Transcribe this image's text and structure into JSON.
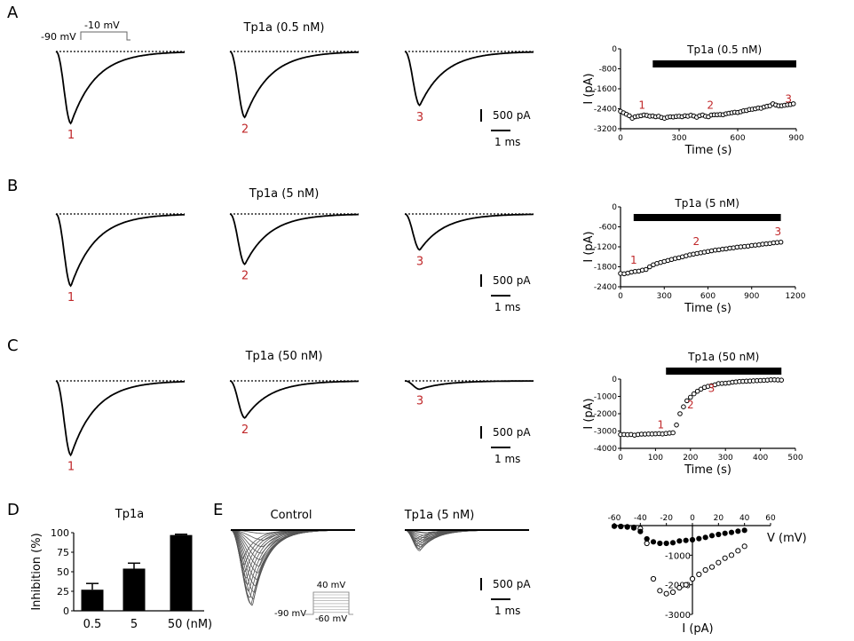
{
  "panels": {
    "A": {
      "letter": "A",
      "title": "Tp1a (0.5 nM)",
      "protocol": {
        "hold": "-90 mV",
        "step": "-10 mV"
      },
      "traces": [
        {
          "label": "1",
          "peak_pA": 3000
        },
        {
          "label": "2",
          "peak_pA": 2750
        },
        {
          "label": "3",
          "peak_pA": 2250
        }
      ],
      "scale": {
        "current": "500 pA",
        "time": "1 ms"
      },
      "timecourse": {
        "type": "scatter",
        "title": "Tp1a (0.5 nM)",
        "xlabel": "Time (s)",
        "ylabel": "I (pA)",
        "xlim": [
          0,
          900
        ],
        "ylim": [
          -3200,
          0
        ],
        "xticks": [
          "0",
          "300",
          "600",
          "900"
        ],
        "yticks": [
          "0",
          "-800",
          "-1600",
          "-2400",
          "-3200"
        ],
        "drug_bar": [
          165,
          900
        ],
        "markers": [
          {
            "label": "1",
            "x": 110,
            "y": -2400
          },
          {
            "label": "2",
            "x": 460,
            "y": -2400
          },
          {
            "label": "3",
            "x": 860,
            "y": -2150
          }
        ],
        "points": [
          [
            0,
            -2500
          ],
          [
            15,
            -2560
          ],
          [
            30,
            -2620
          ],
          [
            45,
            -2680
          ],
          [
            60,
            -2780
          ],
          [
            75,
            -2720
          ],
          [
            90,
            -2700
          ],
          [
            105,
            -2680
          ],
          [
            120,
            -2650
          ],
          [
            135,
            -2670
          ],
          [
            150,
            -2700
          ],
          [
            165,
            -2690
          ],
          [
            180,
            -2720
          ],
          [
            195,
            -2700
          ],
          [
            210,
            -2750
          ],
          [
            225,
            -2780
          ],
          [
            240,
            -2740
          ],
          [
            255,
            -2720
          ],
          [
            270,
            -2730
          ],
          [
            285,
            -2710
          ],
          [
            300,
            -2700
          ],
          [
            315,
            -2720
          ],
          [
            330,
            -2680
          ],
          [
            345,
            -2700
          ],
          [
            360,
            -2660
          ],
          [
            375,
            -2690
          ],
          [
            390,
            -2740
          ],
          [
            405,
            -2680
          ],
          [
            420,
            -2650
          ],
          [
            435,
            -2700
          ],
          [
            450,
            -2720
          ],
          [
            465,
            -2650
          ],
          [
            480,
            -2640
          ],
          [
            495,
            -2640
          ],
          [
            510,
            -2630
          ],
          [
            525,
            -2640
          ],
          [
            540,
            -2600
          ],
          [
            555,
            -2580
          ],
          [
            570,
            -2560
          ],
          [
            585,
            -2540
          ],
          [
            600,
            -2550
          ],
          [
            615,
            -2520
          ],
          [
            630,
            -2480
          ],
          [
            645,
            -2470
          ],
          [
            660,
            -2430
          ],
          [
            675,
            -2420
          ],
          [
            690,
            -2400
          ],
          [
            705,
            -2370
          ],
          [
            720,
            -2380
          ],
          [
            735,
            -2330
          ],
          [
            750,
            -2300
          ],
          [
            765,
            -2280
          ],
          [
            780,
            -2200
          ],
          [
            795,
            -2250
          ],
          [
            810,
            -2280
          ],
          [
            825,
            -2280
          ],
          [
            840,
            -2260
          ],
          [
            855,
            -2240
          ],
          [
            870,
            -2230
          ],
          [
            885,
            -2200
          ]
        ]
      }
    },
    "B": {
      "letter": "B",
      "title": "Tp1a (5 nM)",
      "traces": [
        {
          "label": "1",
          "peak_pA": 3000
        },
        {
          "label": "2",
          "peak_pA": 2100
        },
        {
          "label": "3",
          "peak_pA": 1500
        }
      ],
      "scale": {
        "current": "500 pA",
        "time": "1 ms"
      },
      "timecourse": {
        "type": "scatter",
        "title": "Tp1a (5 nM)",
        "xlabel": "Time (s)",
        "ylabel": "I (pA)",
        "xlim": [
          0,
          1200
        ],
        "ylim": [
          -2400,
          0
        ],
        "xticks": [
          "0",
          "300",
          "600",
          "900",
          "1200"
        ],
        "yticks": [
          "0",
          "-600",
          "-1200",
          "-1800",
          "-2400"
        ],
        "drug_bar": [
          90,
          1100
        ],
        "markers": [
          {
            "label": "1",
            "x": 90,
            "y": -1700
          },
          {
            "label": "2",
            "x": 520,
            "y": -1150
          },
          {
            "label": "3",
            "x": 1080,
            "y": -850
          }
        ],
        "points": [
          [
            0,
            -2000
          ],
          [
            25,
            -2010
          ],
          [
            50,
            -1990
          ],
          [
            75,
            -1960
          ],
          [
            100,
            -1940
          ],
          [
            125,
            -1930
          ],
          [
            150,
            -1900
          ],
          [
            175,
            -1880
          ],
          [
            200,
            -1800
          ],
          [
            225,
            -1740
          ],
          [
            250,
            -1700
          ],
          [
            275,
            -1670
          ],
          [
            300,
            -1640
          ],
          [
            325,
            -1610
          ],
          [
            350,
            -1580
          ],
          [
            375,
            -1550
          ],
          [
            400,
            -1530
          ],
          [
            425,
            -1500
          ],
          [
            450,
            -1470
          ],
          [
            475,
            -1440
          ],
          [
            500,
            -1420
          ],
          [
            525,
            -1400
          ],
          [
            550,
            -1380
          ],
          [
            575,
            -1360
          ],
          [
            600,
            -1340
          ],
          [
            625,
            -1320
          ],
          [
            650,
            -1300
          ],
          [
            675,
            -1290
          ],
          [
            700,
            -1270
          ],
          [
            725,
            -1260
          ],
          [
            750,
            -1240
          ],
          [
            775,
            -1230
          ],
          [
            800,
            -1210
          ],
          [
            825,
            -1200
          ],
          [
            850,
            -1190
          ],
          [
            875,
            -1180
          ],
          [
            900,
            -1160
          ],
          [
            925,
            -1150
          ],
          [
            950,
            -1140
          ],
          [
            975,
            -1120
          ],
          [
            1000,
            -1110
          ],
          [
            1025,
            -1100
          ],
          [
            1050,
            -1080
          ],
          [
            1075,
            -1070
          ],
          [
            1100,
            -1060
          ]
        ]
      }
    },
    "C": {
      "letter": "C",
      "title": "Tp1a (50 nM)",
      "traces": [
        {
          "label": "1",
          "peak_pA": 3100
        },
        {
          "label": "2",
          "peak_pA": 1550
        },
        {
          "label": "3",
          "peak_pA": 350
        }
      ],
      "scale": {
        "current": "500 pA",
        "time": "1 ms"
      },
      "timecourse": {
        "type": "scatter",
        "title": "Tp1a (50 nM)",
        "xlabel": "Time (s)",
        "ylabel": "I (pA)",
        "xlim": [
          0,
          500
        ],
        "ylim": [
          -4000,
          0
        ],
        "xticks": [
          "0",
          "100",
          "200",
          "300",
          "400",
          "500"
        ],
        "yticks": [
          "0",
          "-1000",
          "-2000",
          "-3000",
          "-4000"
        ],
        "drug_bar": [
          130,
          460
        ],
        "markers": [
          {
            "label": "1",
            "x": 115,
            "y": -2850
          },
          {
            "label": "2",
            "x": 200,
            "y": -1700
          },
          {
            "label": "3",
            "x": 260,
            "y": -750
          }
        ],
        "points": [
          [
            0,
            -3200
          ],
          [
            10,
            -3200
          ],
          [
            20,
            -3210
          ],
          [
            30,
            -3200
          ],
          [
            40,
            -3240
          ],
          [
            50,
            -3200
          ],
          [
            60,
            -3180
          ],
          [
            70,
            -3180
          ],
          [
            80,
            -3170
          ],
          [
            90,
            -3170
          ],
          [
            100,
            -3160
          ],
          [
            110,
            -3150
          ],
          [
            120,
            -3170
          ],
          [
            130,
            -3140
          ],
          [
            140,
            -3120
          ],
          [
            150,
            -3100
          ],
          [
            160,
            -2650
          ],
          [
            170,
            -2000
          ],
          [
            180,
            -1600
          ],
          [
            190,
            -1250
          ],
          [
            200,
            -1050
          ],
          [
            210,
            -850
          ],
          [
            220,
            -700
          ],
          [
            230,
            -580
          ],
          [
            240,
            -480
          ],
          [
            250,
            -420
          ],
          [
            260,
            -380
          ],
          [
            270,
            -330
          ],
          [
            280,
            -260
          ],
          [
            290,
            -250
          ],
          [
            300,
            -240
          ],
          [
            310,
            -220
          ],
          [
            320,
            -180
          ],
          [
            330,
            -160
          ],
          [
            340,
            -140
          ],
          [
            350,
            -130
          ],
          [
            360,
            -120
          ],
          [
            370,
            -110
          ],
          [
            380,
            -100
          ],
          [
            390,
            -90
          ],
          [
            400,
            -80
          ],
          [
            410,
            -70
          ],
          [
            420,
            -60
          ],
          [
            430,
            -40
          ],
          [
            440,
            -40
          ],
          [
            450,
            -50
          ],
          [
            460,
            -60
          ]
        ]
      }
    },
    "D": {
      "letter": "D",
      "chart": {
        "type": "bar",
        "title": "Tp1a",
        "ylabel": "Inhibition (%)",
        "categories": [
          "0.5",
          "5",
          "50 (nM)"
        ],
        "values": [
          27,
          54,
          97
        ],
        "errors": [
          8,
          7,
          1
        ],
        "ylim": [
          0,
          100
        ],
        "yticks": [
          "0",
          "25",
          "50",
          "75",
          "100"
        ]
      }
    },
    "E": {
      "letter": "E",
      "control_title": "Control",
      "drug_title": "Tp1a (5 nM)",
      "protocol": {
        "top": "40 mV",
        "hold": "-90 mV",
        "bottom": "-60 mV"
      },
      "scale": {
        "current": "500 pA",
        "time": "1 ms"
      },
      "iv": {
        "type": "scatter",
        "xlabel": "V (mV)",
        "ylabel": "I (pA)",
        "xlim": [
          -60,
          60
        ],
        "ylim": [
          -3000,
          0
        ],
        "xticks": [
          "-60",
          "-40",
          "-20",
          "0",
          "20",
          "40",
          "60"
        ],
        "yticks": [
          "-1000",
          "-2000",
          "-3000"
        ],
        "series": [
          {
            "name": "Control",
            "marker": "open",
            "points": [
              [
                -60,
                -20
              ],
              [
                -55,
                -30
              ],
              [
                -50,
                -40
              ],
              [
                -45,
                -60
              ],
              [
                -40,
                -100
              ],
              [
                -35,
                -600
              ],
              [
                -30,
                -1800
              ],
              [
                -25,
                -2200
              ],
              [
                -20,
                -2300
              ],
              [
                -15,
                -2250
              ],
              [
                -10,
                -2100
              ],
              [
                -5,
                -2000
              ],
              [
                0,
                -1800
              ],
              [
                5,
                -1650
              ],
              [
                10,
                -1500
              ],
              [
                15,
                -1400
              ],
              [
                20,
                -1250
              ],
              [
                25,
                -1100
              ],
              [
                30,
                -1000
              ],
              [
                35,
                -850
              ],
              [
                40,
                -700
              ]
            ]
          },
          {
            "name": "Tp1a (5 nM)",
            "marker": "filled",
            "points": [
              [
                -60,
                -20
              ],
              [
                -55,
                -30
              ],
              [
                -50,
                -50
              ],
              [
                -45,
                -80
              ],
              [
                -40,
                -200
              ],
              [
                -35,
                -450
              ],
              [
                -30,
                -550
              ],
              [
                -25,
                -600
              ],
              [
                -20,
                -600
              ],
              [
                -15,
                -580
              ],
              [
                -10,
                -520
              ],
              [
                -5,
                -500
              ],
              [
                0,
                -480
              ],
              [
                5,
                -440
              ],
              [
                10,
                -400
              ],
              [
                15,
                -340
              ],
              [
                20,
                -300
              ],
              [
                25,
                -260
              ],
              [
                30,
                -230
              ],
              [
                35,
                -190
              ],
              [
                40,
                -160
              ]
            ]
          }
        ]
      }
    }
  }
}
